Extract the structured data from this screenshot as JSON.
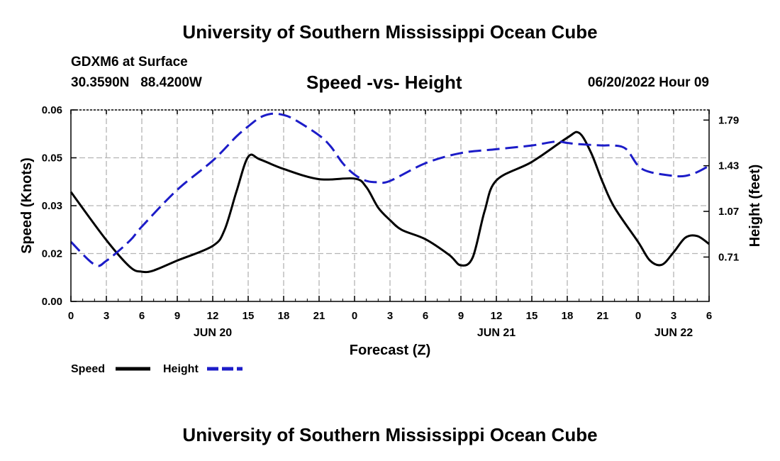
{
  "header": {
    "title": "University of Southern Mississippi Ocean Cube",
    "station": "GDXM6 at Surface",
    "coords": "30.3590N   88.4200W",
    "subtitle": "Speed -vs- Height",
    "datetime": "06/20/2022 Hour 09"
  },
  "footer": {
    "title": "University of Southern Mississippi Ocean Cube"
  },
  "chart_data": {
    "type": "line",
    "title": "Speed -vs- Height",
    "xlabel": "Forecast (Z)",
    "ylabel_left": "Speed (Knots)",
    "ylabel_right": "Height (feet)",
    "x_range": [
      0,
      54
    ],
    "y_left_range": [
      0.0,
      0.06
    ],
    "y_right_range": [
      0.36,
      1.87
    ],
    "x_ticks": [
      0,
      3,
      6,
      9,
      12,
      15,
      18,
      21,
      24,
      27,
      30,
      33,
      36,
      39,
      42,
      45,
      48,
      51,
      54
    ],
    "x_tick_labels": [
      "0",
      "3",
      "6",
      "9",
      "12",
      "15",
      "18",
      "21",
      "0",
      "3",
      "6",
      "9",
      "12",
      "15",
      "18",
      "21",
      "0",
      "3",
      "6"
    ],
    "day_labels": [
      {
        "x": 12,
        "text": "JUN 20"
      },
      {
        "x": 36,
        "text": "JUN 21"
      },
      {
        "x": 51,
        "text": "JUN 22"
      }
    ],
    "y_left_ticks": [
      0.0,
      0.015,
      0.03,
      0.045,
      0.06
    ],
    "y_left_tick_labels": [
      "0.00",
      "0.02",
      "0.03",
      "0.05",
      "0.06"
    ],
    "y_right_ticks": [
      0.71,
      1.07,
      1.43,
      1.79
    ],
    "y_right_tick_labels": [
      "0.71",
      "1.07",
      "1.43",
      "1.79"
    ],
    "grid": true,
    "legend_position": "bottom-left",
    "series": [
      {
        "name": "Speed",
        "axis": "left",
        "color": "#000000",
        "dash": "solid",
        "points": [
          [
            0,
            0.0343
          ],
          [
            3,
            0.0192
          ],
          [
            5,
            0.0108
          ],
          [
            6,
            0.0093
          ],
          [
            7,
            0.0097
          ],
          [
            9,
            0.0128
          ],
          [
            12,
            0.0174
          ],
          [
            13,
            0.0224
          ],
          [
            14,
            0.0343
          ],
          [
            15,
            0.0453
          ],
          [
            16,
            0.0445
          ],
          [
            18,
            0.0415
          ],
          [
            21,
            0.0383
          ],
          [
            24,
            0.0385
          ],
          [
            25,
            0.0358
          ],
          [
            26,
            0.0294
          ],
          [
            27,
            0.0255
          ],
          [
            28,
            0.0224
          ],
          [
            30,
            0.0195
          ],
          [
            32,
            0.0146
          ],
          [
            33,
            0.0113
          ],
          [
            34,
            0.0138
          ],
          [
            35,
            0.0282
          ],
          [
            36,
            0.0379
          ],
          [
            39,
            0.0437
          ],
          [
            42,
            0.0513
          ],
          [
            43,
            0.0528
          ],
          [
            44,
            0.0467
          ],
          [
            45,
            0.0373
          ],
          [
            46,
            0.0294
          ],
          [
            48,
            0.0186
          ],
          [
            49,
            0.0128
          ],
          [
            50,
            0.0115
          ],
          [
            51,
            0.0154
          ],
          [
            52,
            0.02
          ],
          [
            53,
            0.0205
          ],
          [
            54,
            0.018
          ]
        ]
      },
      {
        "name": "Height",
        "axis": "right",
        "color": "#1c1cc8",
        "dash": "dashed",
        "points": [
          [
            0,
            0.83
          ],
          [
            2,
            0.65
          ],
          [
            3,
            0.68
          ],
          [
            5,
            0.84
          ],
          [
            6,
            0.95
          ],
          [
            9,
            1.24
          ],
          [
            12,
            1.47
          ],
          [
            14,
            1.66
          ],
          [
            15,
            1.74
          ],
          [
            16,
            1.81
          ],
          [
            17,
            1.84
          ],
          [
            18,
            1.83
          ],
          [
            19,
            1.79
          ],
          [
            21,
            1.67
          ],
          [
            22,
            1.58
          ],
          [
            23,
            1.45
          ],
          [
            24,
            1.36
          ],
          [
            25,
            1.31
          ],
          [
            26,
            1.3
          ],
          [
            27,
            1.31
          ],
          [
            30,
            1.45
          ],
          [
            33,
            1.53
          ],
          [
            36,
            1.56
          ],
          [
            39,
            1.59
          ],
          [
            41,
            1.62
          ],
          [
            42,
            1.61
          ],
          [
            43,
            1.6
          ],
          [
            45,
            1.59
          ],
          [
            46,
            1.59
          ],
          [
            47,
            1.56
          ],
          [
            48,
            1.43
          ],
          [
            49,
            1.38
          ],
          [
            51,
            1.35
          ],
          [
            52,
            1.35
          ],
          [
            53,
            1.38
          ],
          [
            54,
            1.43
          ]
        ]
      }
    ]
  }
}
